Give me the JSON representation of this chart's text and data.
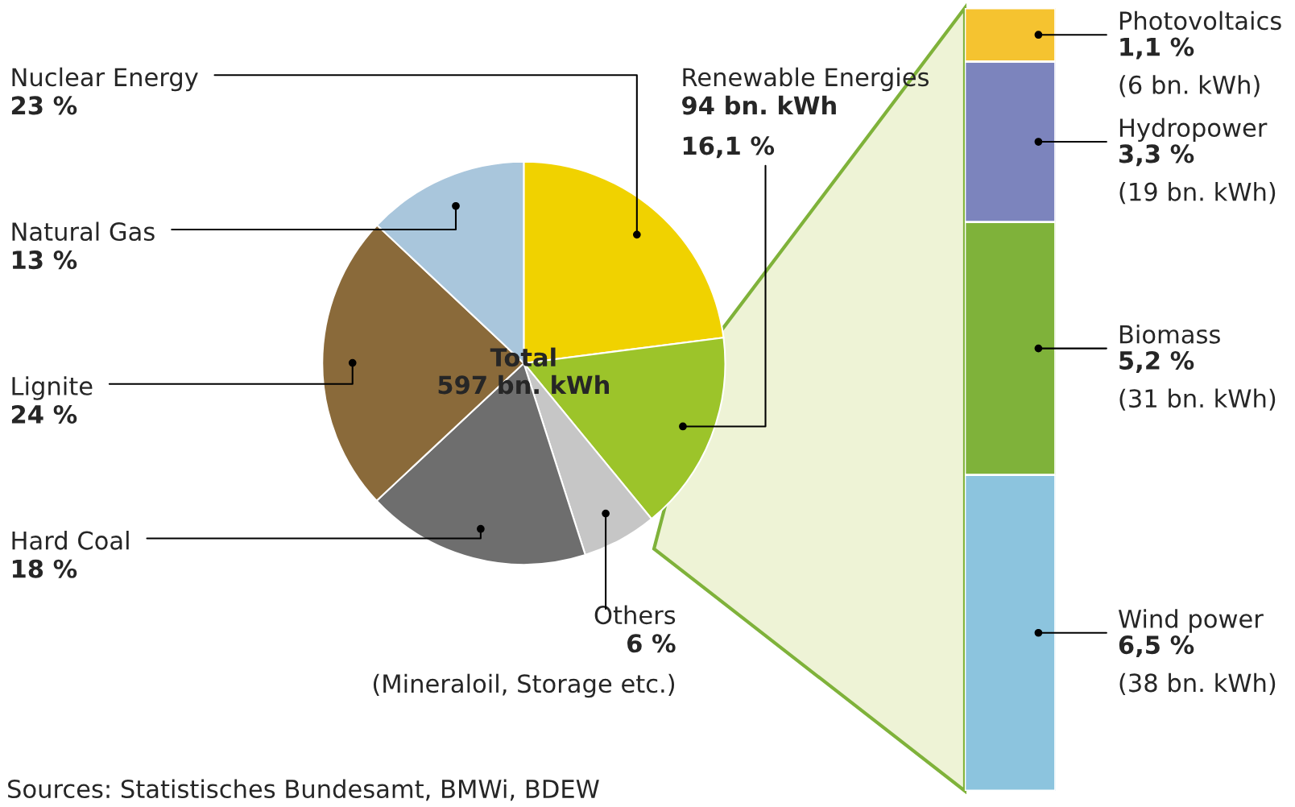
{
  "chart_data": [
    {
      "type": "pie",
      "categories": [
        "Nuclear Energy",
        "Renewable Energies",
        "Others",
        "Hard Coal",
        "Lignite",
        "Natural Gas"
      ],
      "values": [
        23,
        16.1,
        6,
        18,
        24,
        13
      ],
      "colors": [
        "#f0d200",
        "#9cc42a",
        "#c6c6c6",
        "#6e6e6e",
        "#8a6a3a",
        "#a9c6dc"
      ],
      "value_labels": [
        "23 %",
        "94 bn. kWh\n16,1 %",
        "6 %\n(Mineraloil, Storage etc.)",
        "18 %",
        "24 %",
        "13 %"
      ],
      "annotations": [
        "Total\n597 bn. kWh",
        "Sources: Statistisches Bundesamt, BMWi, BDEW"
      ]
    },
    {
      "type": "bar",
      "stacked": true,
      "categories": [
        null
      ],
      "series": [
        {
          "name": "Wind power",
          "color": "#8cc4de",
          "values": [
            6.5
          ],
          "value_labels": [
            "6,5 %\n(38 bn. kWh)"
          ]
        },
        {
          "name": "Biomass",
          "color": "#7fb23a",
          "values": [
            5.2
          ],
          "value_labels": [
            "5,2 %\n(31 bn. kWh)"
          ]
        },
        {
          "name": "Hydropower",
          "color": "#7c84bd",
          "values": [
            3.3
          ],
          "value_labels": [
            "3,3 %\n(19 bn. kWh)"
          ]
        },
        {
          "name": "Photovoltaics",
          "color": "#f5c330",
          "values": [
            1.1
          ],
          "value_labels": [
            "1,1 %\n(6 bn. kWh)"
          ]
        }
      ]
    }
  ]
}
